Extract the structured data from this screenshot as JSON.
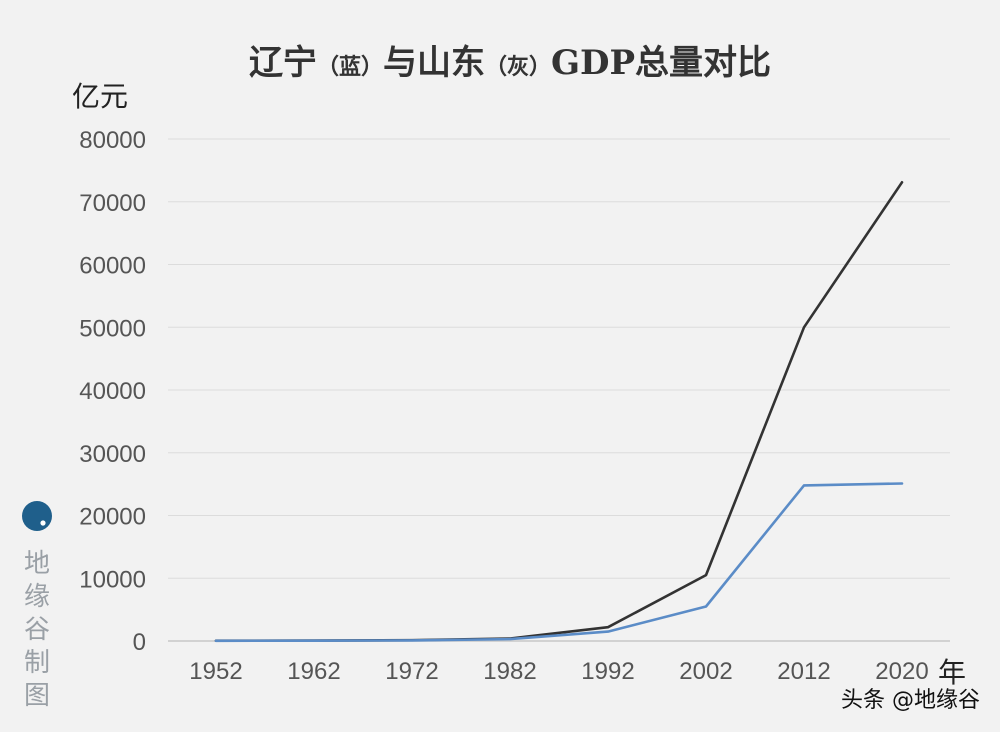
{
  "chart_data": {
    "type": "line",
    "title_main1": "辽宁",
    "title_paren1": "（蓝）",
    "title_main2": "与山东",
    "title_paren2": "（灰）",
    "title_main3": "GDP总量对比",
    "ylabel": "亿元",
    "xlabel": "年",
    "ylim": [
      0,
      80000
    ],
    "yticks": [
      "80000",
      "70000",
      "60000",
      "50000",
      "40000",
      "30000",
      "20000",
      "10000",
      "0"
    ],
    "ytick_values": [
      80000,
      70000,
      60000,
      50000,
      40000,
      30000,
      20000,
      10000,
      0
    ],
    "categories": [
      "1952",
      "1962",
      "1972",
      "1982",
      "1992",
      "2002",
      "2012",
      "2020"
    ],
    "grid": true,
    "series": [
      {
        "color": "#333333",
        "values": [
          40,
          60,
          120,
          400,
          2200,
          10500,
          50000,
          73100
        ]
      },
      {
        "color": "#5b8cc7",
        "values": [
          30,
          50,
          100,
          300,
          1500,
          5500,
          24800,
          25100
        ]
      }
    ]
  },
  "credit": {
    "brand_chars": [
      "地",
      "缘",
      "谷",
      "制",
      "图"
    ],
    "brand_color": "#1f5f8b"
  },
  "watermark": "头条 @地缘谷"
}
